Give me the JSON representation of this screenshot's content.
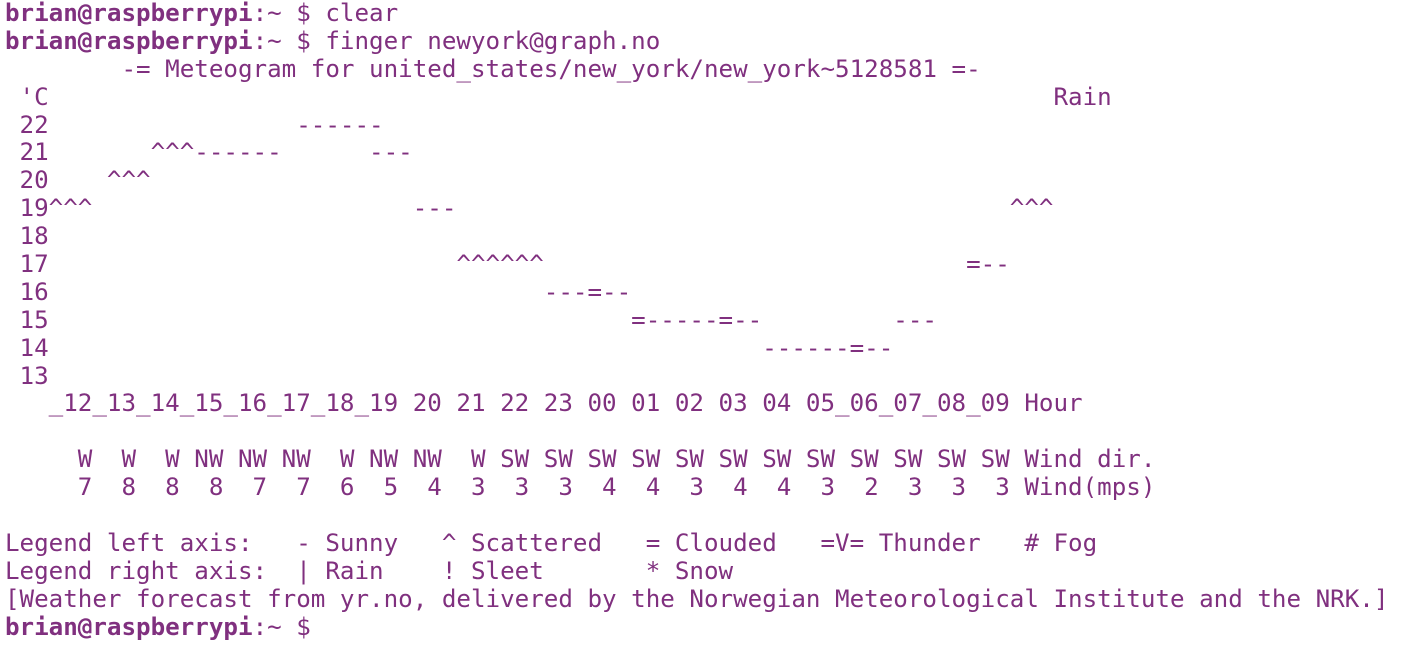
{
  "terminal": {
    "prompt": {
      "user_host": "brian@raspberrypi",
      "path_symbol": ":~ $ "
    },
    "commands": [
      "clear",
      "finger newyork@graph.no"
    ],
    "output_lines": [
      "        -= Meteogram for united_states/new_york/new_york~5128581 =-",
      " 'C                                                                     Rain",
      " 22                 ------",
      " 21       ^^^------      ---",
      " 20    ^^^",
      " 19^^^                      ---                                      ^^^",
      " 18",
      " 17                            ^^^^^^                             =--",
      " 16                                  ---=--",
      " 15                                        =-----=--         ---",
      " 14                                                 ------=--",
      " 13",
      "   _12_13_14_15_16_17_18_19 20 21 22 23 00 01 02 03 04 05_06_07_08_09 Hour",
      "",
      "     W  W  W NW NW NW  W NW NW  W SW SW SW SW SW SW SW SW SW SW SW SW Wind dir.",
      "     7  8  8  8  7  7  6  5  4  3  3  3  4  4  3  4  4  3  2  3  3  3 Wind(mps)",
      "",
      "Legend left axis:   - Sunny   ^ Scattered   = Clouded   =V= Thunder   # Fog",
      "Legend right axis:  | Rain    ! Sleet       * Snow",
      "[Weather forecast from yr.no, delivered by the Norwegian Meteorological Institute and the NRK.]"
    ]
  },
  "colors": {
    "text": "#80307f",
    "background": "#ffffff"
  }
}
